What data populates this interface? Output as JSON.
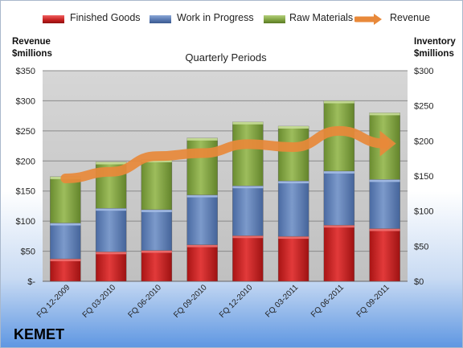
{
  "legend": {
    "finished_goods": "Finished Goods",
    "wip": "Work in Progress",
    "raw": "Raw Materials",
    "revenue": "Revenue"
  },
  "left_axis_title_1": "Revenue",
  "left_axis_title_2": "$millions",
  "right_axis_title_1": "Inventory",
  "right_axis_title_2": "$millions",
  "brand": "KEMET",
  "colors": {
    "finished_goods": "#cc2222",
    "wip": "#5577b0",
    "raw": "#7fa03e",
    "revenue": "#e8893a"
  },
  "chart_data": {
    "type": "bar",
    "title": "Quarterly Periods",
    "stacked": true,
    "categories": [
      "FQ 12-2009",
      "FQ 03-2010",
      "FQ 06-2010",
      "FQ 09-2010",
      "FQ 12-2010",
      "FQ 03-2011",
      "FQ 06-2011",
      "FQ 09-2011"
    ],
    "series": [
      {
        "name": "Finished Goods",
        "axis": "right",
        "values": [
          32,
          42,
          44,
          52,
          65,
          64,
          80,
          75
        ]
      },
      {
        "name": "Work in Progress",
        "axis": "right",
        "values": [
          51,
          62,
          58,
          71,
          71,
          79,
          77,
          70
        ]
      },
      {
        "name": "Raw Materials",
        "axis": "right",
        "values": [
          66,
          66,
          71,
          81,
          91,
          78,
          100,
          95
        ]
      },
      {
        "name": "Revenue",
        "type": "line",
        "axis": "left",
        "values": [
          171,
          182,
          208,
          213,
          228,
          223,
          250,
          229
        ]
      }
    ],
    "left_axis": {
      "label": "Revenue $millions",
      "range": [
        0,
        350
      ],
      "ticks": [
        "$-",
        "$50",
        "$100",
        "$150",
        "$200",
        "$250",
        "$300",
        "$350"
      ]
    },
    "right_axis": {
      "label": "Inventory $millions",
      "range": [
        0,
        300
      ],
      "ticks": [
        "$0",
        "$50",
        "$100",
        "$150",
        "$200",
        "$250",
        "$300"
      ]
    },
    "grid": true,
    "legend_position": "top"
  }
}
